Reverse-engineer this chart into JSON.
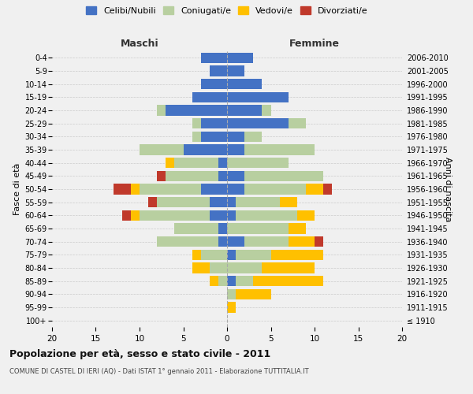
{
  "age_groups": [
    "100+",
    "95-99",
    "90-94",
    "85-89",
    "80-84",
    "75-79",
    "70-74",
    "65-69",
    "60-64",
    "55-59",
    "50-54",
    "45-49",
    "40-44",
    "35-39",
    "30-34",
    "25-29",
    "20-24",
    "15-19",
    "10-14",
    "5-9",
    "0-4"
  ],
  "birth_years": [
    "≤ 1910",
    "1911-1915",
    "1916-1920",
    "1921-1925",
    "1926-1930",
    "1931-1935",
    "1936-1940",
    "1941-1945",
    "1946-1950",
    "1951-1955",
    "1956-1960",
    "1961-1965",
    "1966-1970",
    "1971-1975",
    "1976-1980",
    "1981-1985",
    "1986-1990",
    "1991-1995",
    "1996-2000",
    "2001-2005",
    "2006-2010"
  ],
  "maschi": {
    "celibi": [
      0,
      0,
      0,
      0,
      0,
      0,
      1,
      1,
      2,
      2,
      3,
      1,
      1,
      5,
      3,
      3,
      7,
      4,
      3,
      2,
      3
    ],
    "coniugati": [
      0,
      0,
      0,
      1,
      2,
      3,
      7,
      5,
      8,
      6,
      7,
      6,
      5,
      5,
      1,
      1,
      1,
      0,
      0,
      0,
      0
    ],
    "vedovi": [
      0,
      0,
      0,
      1,
      2,
      1,
      0,
      0,
      1,
      0,
      1,
      0,
      1,
      0,
      0,
      0,
      0,
      0,
      0,
      0,
      0
    ],
    "divorziati": [
      0,
      0,
      0,
      0,
      0,
      0,
      0,
      0,
      1,
      1,
      2,
      1,
      0,
      0,
      0,
      0,
      0,
      0,
      0,
      0,
      0
    ]
  },
  "femmine": {
    "nubili": [
      0,
      0,
      0,
      1,
      0,
      1,
      2,
      0,
      1,
      1,
      2,
      2,
      0,
      2,
      2,
      7,
      4,
      7,
      4,
      2,
      3
    ],
    "coniugate": [
      0,
      0,
      1,
      2,
      4,
      4,
      5,
      7,
      7,
      5,
      7,
      9,
      7,
      8,
      2,
      2,
      1,
      0,
      0,
      0,
      0
    ],
    "vedove": [
      0,
      1,
      4,
      8,
      6,
      6,
      3,
      2,
      2,
      2,
      2,
      0,
      0,
      0,
      0,
      0,
      0,
      0,
      0,
      0,
      0
    ],
    "divorziate": [
      0,
      0,
      0,
      0,
      0,
      0,
      1,
      0,
      0,
      0,
      1,
      0,
      0,
      0,
      0,
      0,
      0,
      0,
      0,
      0,
      0
    ]
  },
  "colors": {
    "celibi": "#4472c4",
    "coniugati": "#b8cfa0",
    "vedovi": "#ffc000",
    "divorziati": "#c0392b"
  },
  "xlim": 20,
  "title": "Popolazione per età, sesso e stato civile - 2011",
  "subtitle": "COMUNE DI CASTEL DI IERI (AQ) - Dati ISTAT 1° gennaio 2011 - Elaborazione TUTTITALIA.IT",
  "ylabel_left": "Fasce di età",
  "ylabel_right": "Anni di nascita",
  "xlabel_left": "Maschi",
  "xlabel_right": "Femmine",
  "bg_color": "#f0f0f0",
  "bar_height": 0.8
}
